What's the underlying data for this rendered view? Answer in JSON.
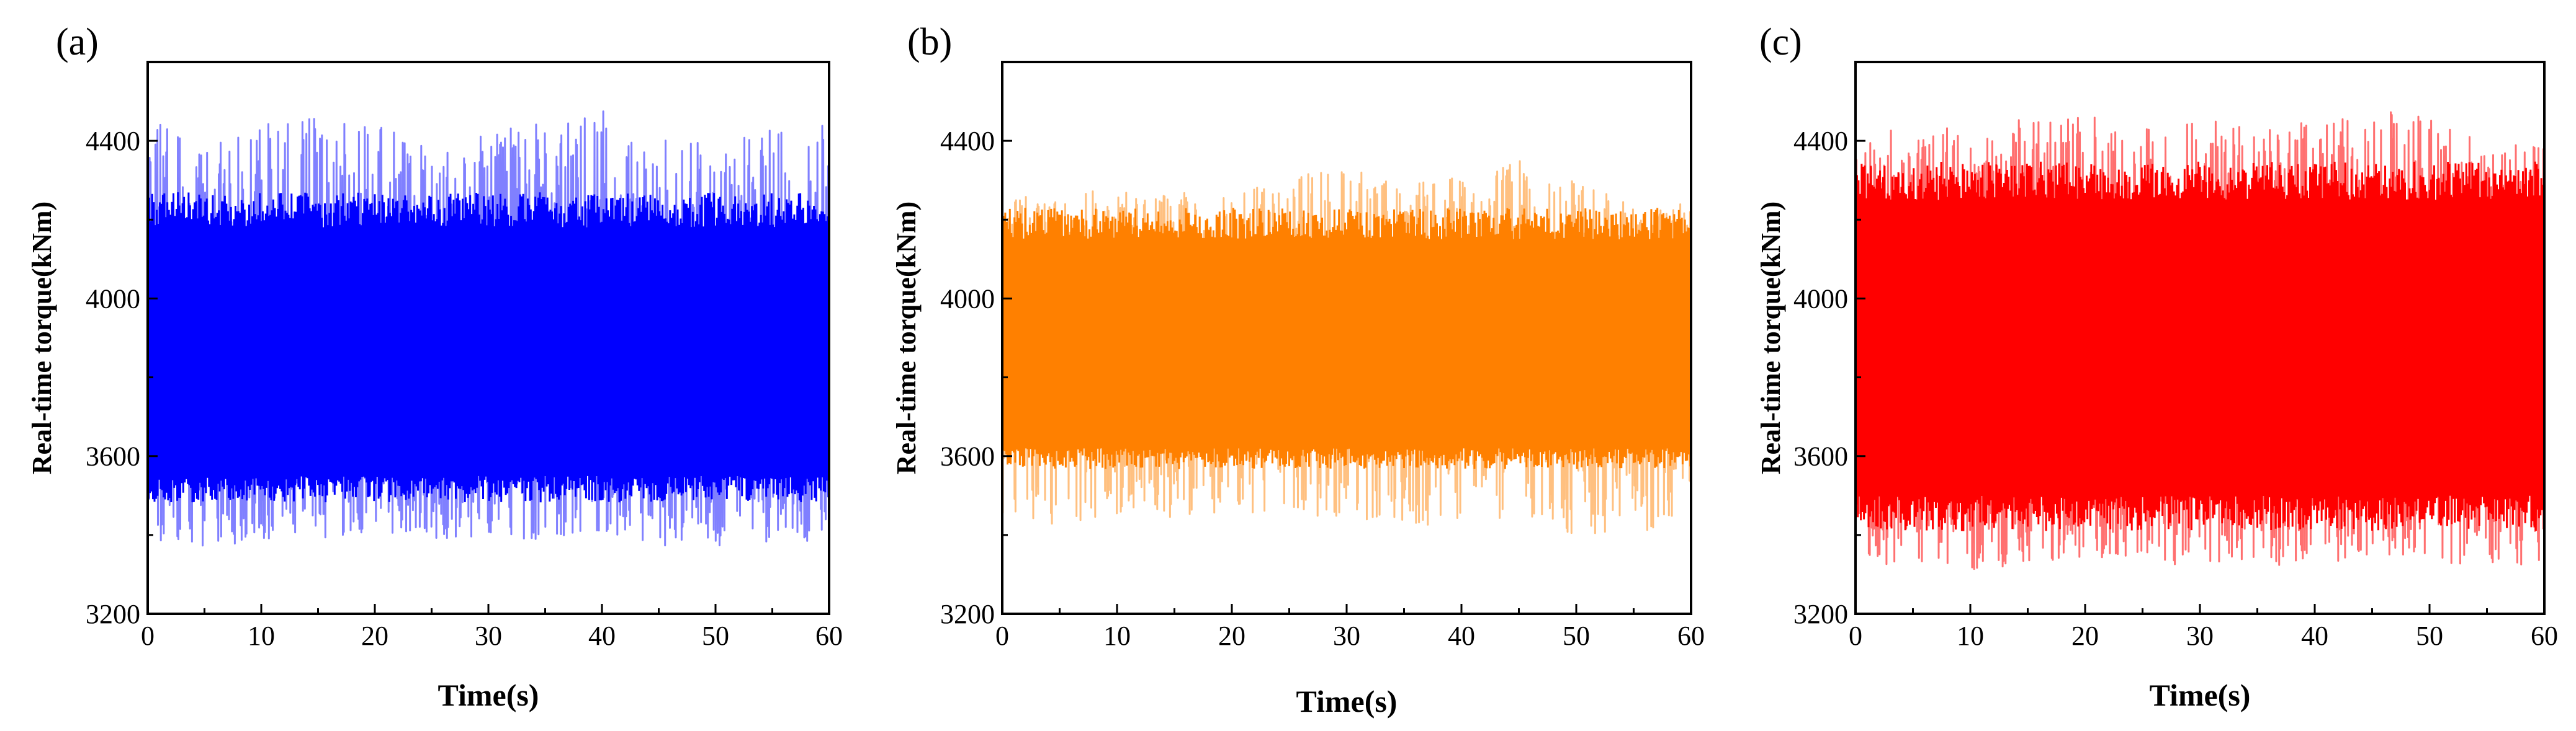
{
  "figure": {
    "panels": [
      {
        "id": "a",
        "label": "(a)",
        "color": "#0000ff",
        "light_color": "#8080ff",
        "ylabel": "Real-time torque(kNm)",
        "xlabel": "Time(s)",
        "xticks": [
          "0",
          "10",
          "20",
          "30",
          "40",
          "50",
          "60"
        ],
        "yticks": [
          "3200",
          "3600",
          "4000",
          "4400"
        ]
      },
      {
        "id": "b",
        "label": "(b)",
        "color": "#ff8000",
        "light_color": "#ffc080",
        "ylabel": "Real-time torque(kNm)",
        "xlabel": "Time(s)",
        "xticks": [
          "0",
          "10",
          "20",
          "30",
          "40",
          "50",
          "60"
        ],
        "yticks": [
          "3200",
          "3600",
          "4000",
          "4400"
        ]
      },
      {
        "id": "c",
        "label": "(c)",
        "color": "#ff0000",
        "light_color": "#ff7070",
        "ylabel": "Real-time torque(kNm)",
        "xlabel": "Time(s)",
        "xticks": [
          "0",
          "10",
          "20",
          "30",
          "40",
          "50",
          "60"
        ],
        "yticks": [
          "3200",
          "3600",
          "4000",
          "4400"
        ]
      }
    ]
  },
  "chart_data": [
    {
      "type": "line",
      "xlim": [
        0,
        60
      ],
      "ylim": [
        3200,
        4600
      ],
      "grid": false,
      "xlabel": "Time(s)",
      "ylabel": "Real-time torque(kNm)",
      "series": [
        {
          "color": "#0000ff",
          "mean": 3820,
          "dense_band": [
            3550,
            4180
          ],
          "peak_max": [
            4460,
            4380,
            4440,
            4470,
            4460,
            4380,
            4420,
            4450,
            4480,
            4430,
            4380,
            4440
          ],
          "trough_min": [
            3390,
            3360,
            3390,
            3390,
            3410,
            3380,
            3400,
            3380,
            3390,
            3370,
            3370,
            3380
          ],
          "peak_time_s": [
            0,
            5,
            10,
            15,
            20,
            25,
            30,
            35,
            40,
            45,
            50,
            55
          ]
        }
      ]
    },
    {
      "type": "line",
      "xlim": [
        0,
        60
      ],
      "ylim": [
        3200,
        4600
      ],
      "grid": false,
      "xlabel": "Time(s)",
      "ylabel": "Real-time torque(kNm)",
      "series": [
        {
          "color": "#ff8000",
          "mean": 3830,
          "dense_band": [
            3620,
            4150
          ],
          "peak_max": [
            4250,
            4280,
            4270,
            4270,
            4260,
            4310,
            4340,
            4290,
            4320,
            4350,
            4300,
            4240
          ],
          "trough_min": [
            3450,
            3420,
            3450,
            3430,
            3460,
            3450,
            3440,
            3420,
            3430,
            3440,
            3400,
            3410
          ],
          "peak_time_s": [
            0,
            5,
            10,
            15,
            20,
            25,
            30,
            35,
            40,
            45,
            50,
            55
          ]
        }
      ]
    },
    {
      "type": "line",
      "xlim": [
        0,
        60
      ],
      "ylim": [
        3200,
        4600
      ],
      "grid": false,
      "xlabel": "Time(s)",
      "ylabel": "Real-time torque(kNm)",
      "series": [
        {
          "color": "#ff0000",
          "mean": 3860,
          "dense_band": [
            3500,
            4250
          ],
          "peak_max": [
            4440,
            4420,
            4440,
            4460,
            4470,
            4440,
            4460,
            4440,
            4450,
            4490,
            4460,
            4390
          ],
          "trough_min": [
            3320,
            3330,
            3310,
            3320,
            3340,
            3320,
            3330,
            3320,
            3330,
            3340,
            3330,
            3320
          ],
          "peak_time_s": [
            0,
            5,
            10,
            15,
            20,
            25,
            30,
            35,
            40,
            45,
            50,
            55
          ]
        }
      ]
    }
  ]
}
